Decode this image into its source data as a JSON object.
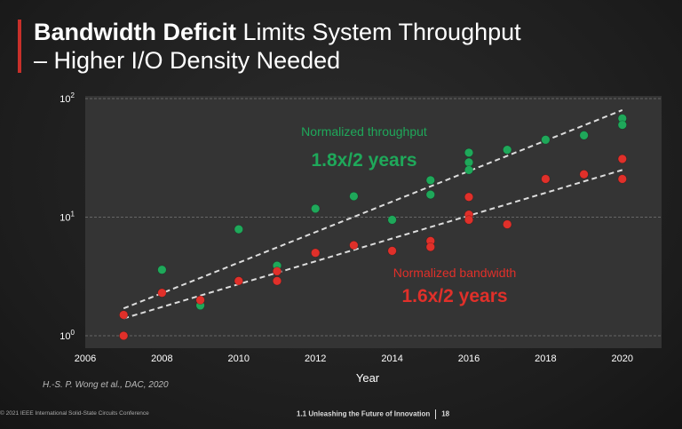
{
  "slide": {
    "title_bold": "Bandwidth Deficit",
    "title_rest": " Limits System Throughput",
    "title_line2": "– Higher I/O Density Needed",
    "citation": "H.-S. P. Wong et al., DAC, 2020",
    "footer_left": "© 2021 IEEE International Solid-State Circuits Conference",
    "footer_session": "1.1 Unleashing the Future of Innovation",
    "page_number": "18",
    "accent_color": "#c8302a"
  },
  "chart_data": {
    "type": "scatter",
    "xlabel": "Year",
    "ylabel": "",
    "xlim": [
      2006,
      2021
    ],
    "ylim": [
      1,
      100
    ],
    "yscale": "log",
    "grid": "horizontal dashed",
    "x_ticks": [
      "2006",
      "2008",
      "2010",
      "2012",
      "2014",
      "2016",
      "2018",
      "2020"
    ],
    "y_ticks": [
      {
        "base": "10",
        "exp": "0",
        "value": 1
      },
      {
        "base": "10",
        "exp": "1",
        "value": 10
      },
      {
        "base": "10",
        "exp": "2",
        "value": 100
      }
    ],
    "series": [
      {
        "name": "Normalized throughput",
        "annotation": "1.8x/2 years",
        "color": "#1fa85a",
        "points": [
          [
            2008,
            3.6
          ],
          [
            2009,
            1.8
          ],
          [
            2010,
            7.9
          ],
          [
            2011,
            3.9
          ],
          [
            2012,
            11.8
          ],
          [
            2013,
            15
          ],
          [
            2014,
            9.5
          ],
          [
            2015,
            20.5
          ],
          [
            2015,
            15.5
          ],
          [
            2016,
            35
          ],
          [
            2016,
            29
          ],
          [
            2016,
            25
          ],
          [
            2017,
            37
          ],
          [
            2018,
            45
          ],
          [
            2019,
            49
          ],
          [
            2020,
            68
          ],
          [
            2020,
            60
          ]
        ],
        "trend": [
          [
            2007,
            1.7
          ],
          [
            2020,
            80
          ]
        ]
      },
      {
        "name": "Normalized bandwidth",
        "annotation": "1.6x/2 years",
        "color": "#e0302a",
        "points": [
          [
            2007,
            1.5
          ],
          [
            2007,
            1.0
          ],
          [
            2008,
            2.3
          ],
          [
            2009,
            2.0
          ],
          [
            2010,
            2.9
          ],
          [
            2011,
            3.5
          ],
          [
            2011,
            2.9
          ],
          [
            2012,
            5.0
          ],
          [
            2013,
            5.8
          ],
          [
            2014,
            5.2
          ],
          [
            2015,
            6.3
          ],
          [
            2015,
            5.6
          ],
          [
            2016,
            14.8
          ],
          [
            2016,
            10.5
          ],
          [
            2016,
            9.5
          ],
          [
            2017,
            8.7
          ],
          [
            2018,
            21
          ],
          [
            2019,
            23
          ],
          [
            2020,
            31
          ],
          [
            2020,
            21
          ]
        ],
        "trend": [
          [
            2007,
            1.4
          ],
          [
            2020,
            25
          ]
        ]
      }
    ]
  }
}
